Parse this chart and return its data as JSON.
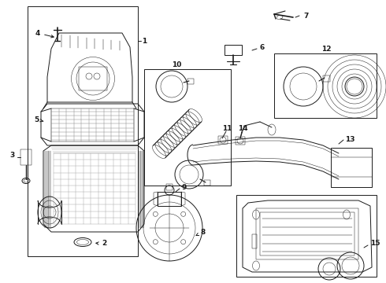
{
  "bg_color": "#ffffff",
  "line_color": "#1a1a1a",
  "lw": 0.7,
  "tlw": 0.35,
  "fs": 6.5,
  "fw": "bold"
}
